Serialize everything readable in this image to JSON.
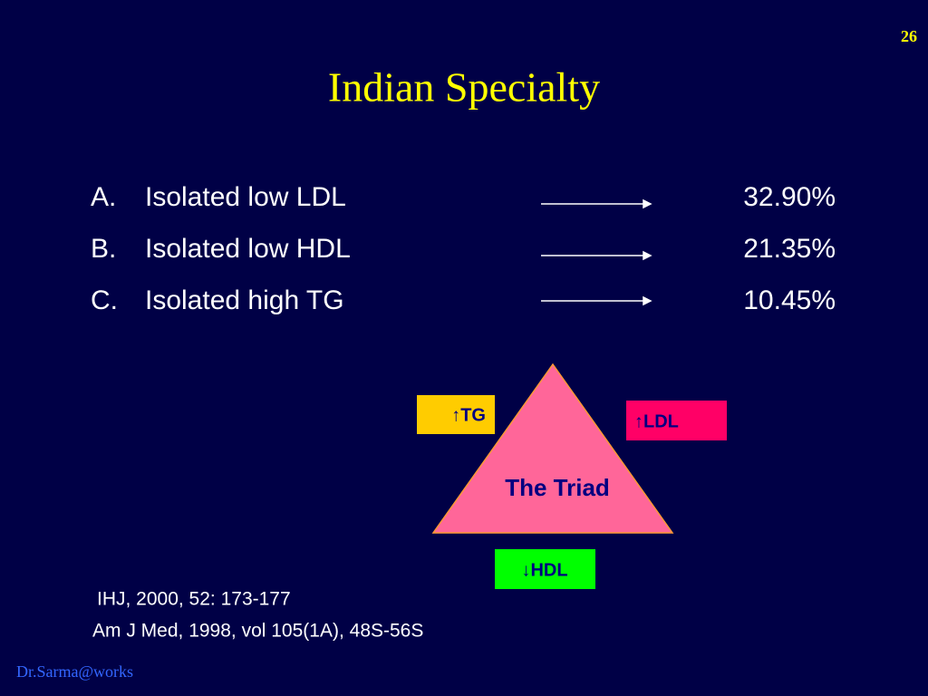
{
  "slide": {
    "page_number": "26",
    "title": "Indian Specialty",
    "items": [
      {
        "marker": "A.",
        "label": "Isolated low LDL",
        "value": "32.90%"
      },
      {
        "marker": "B.",
        "label": "Isolated low HDL",
        "value": "21.35%"
      },
      {
        "marker": "C.",
        "label": "Isolated high TG",
        "value": "10.45%"
      }
    ],
    "triad": {
      "center": "The Triad",
      "tg": "↑TG",
      "ldl": "↑LDL",
      "hdl": "↓HDL"
    },
    "references": [
      "IHJ, 2000, 52: 173-177",
      "Am J Med, 1998, vol 105(1A), 48S-56S"
    ],
    "footer": "Dr.Sarma@works"
  }
}
